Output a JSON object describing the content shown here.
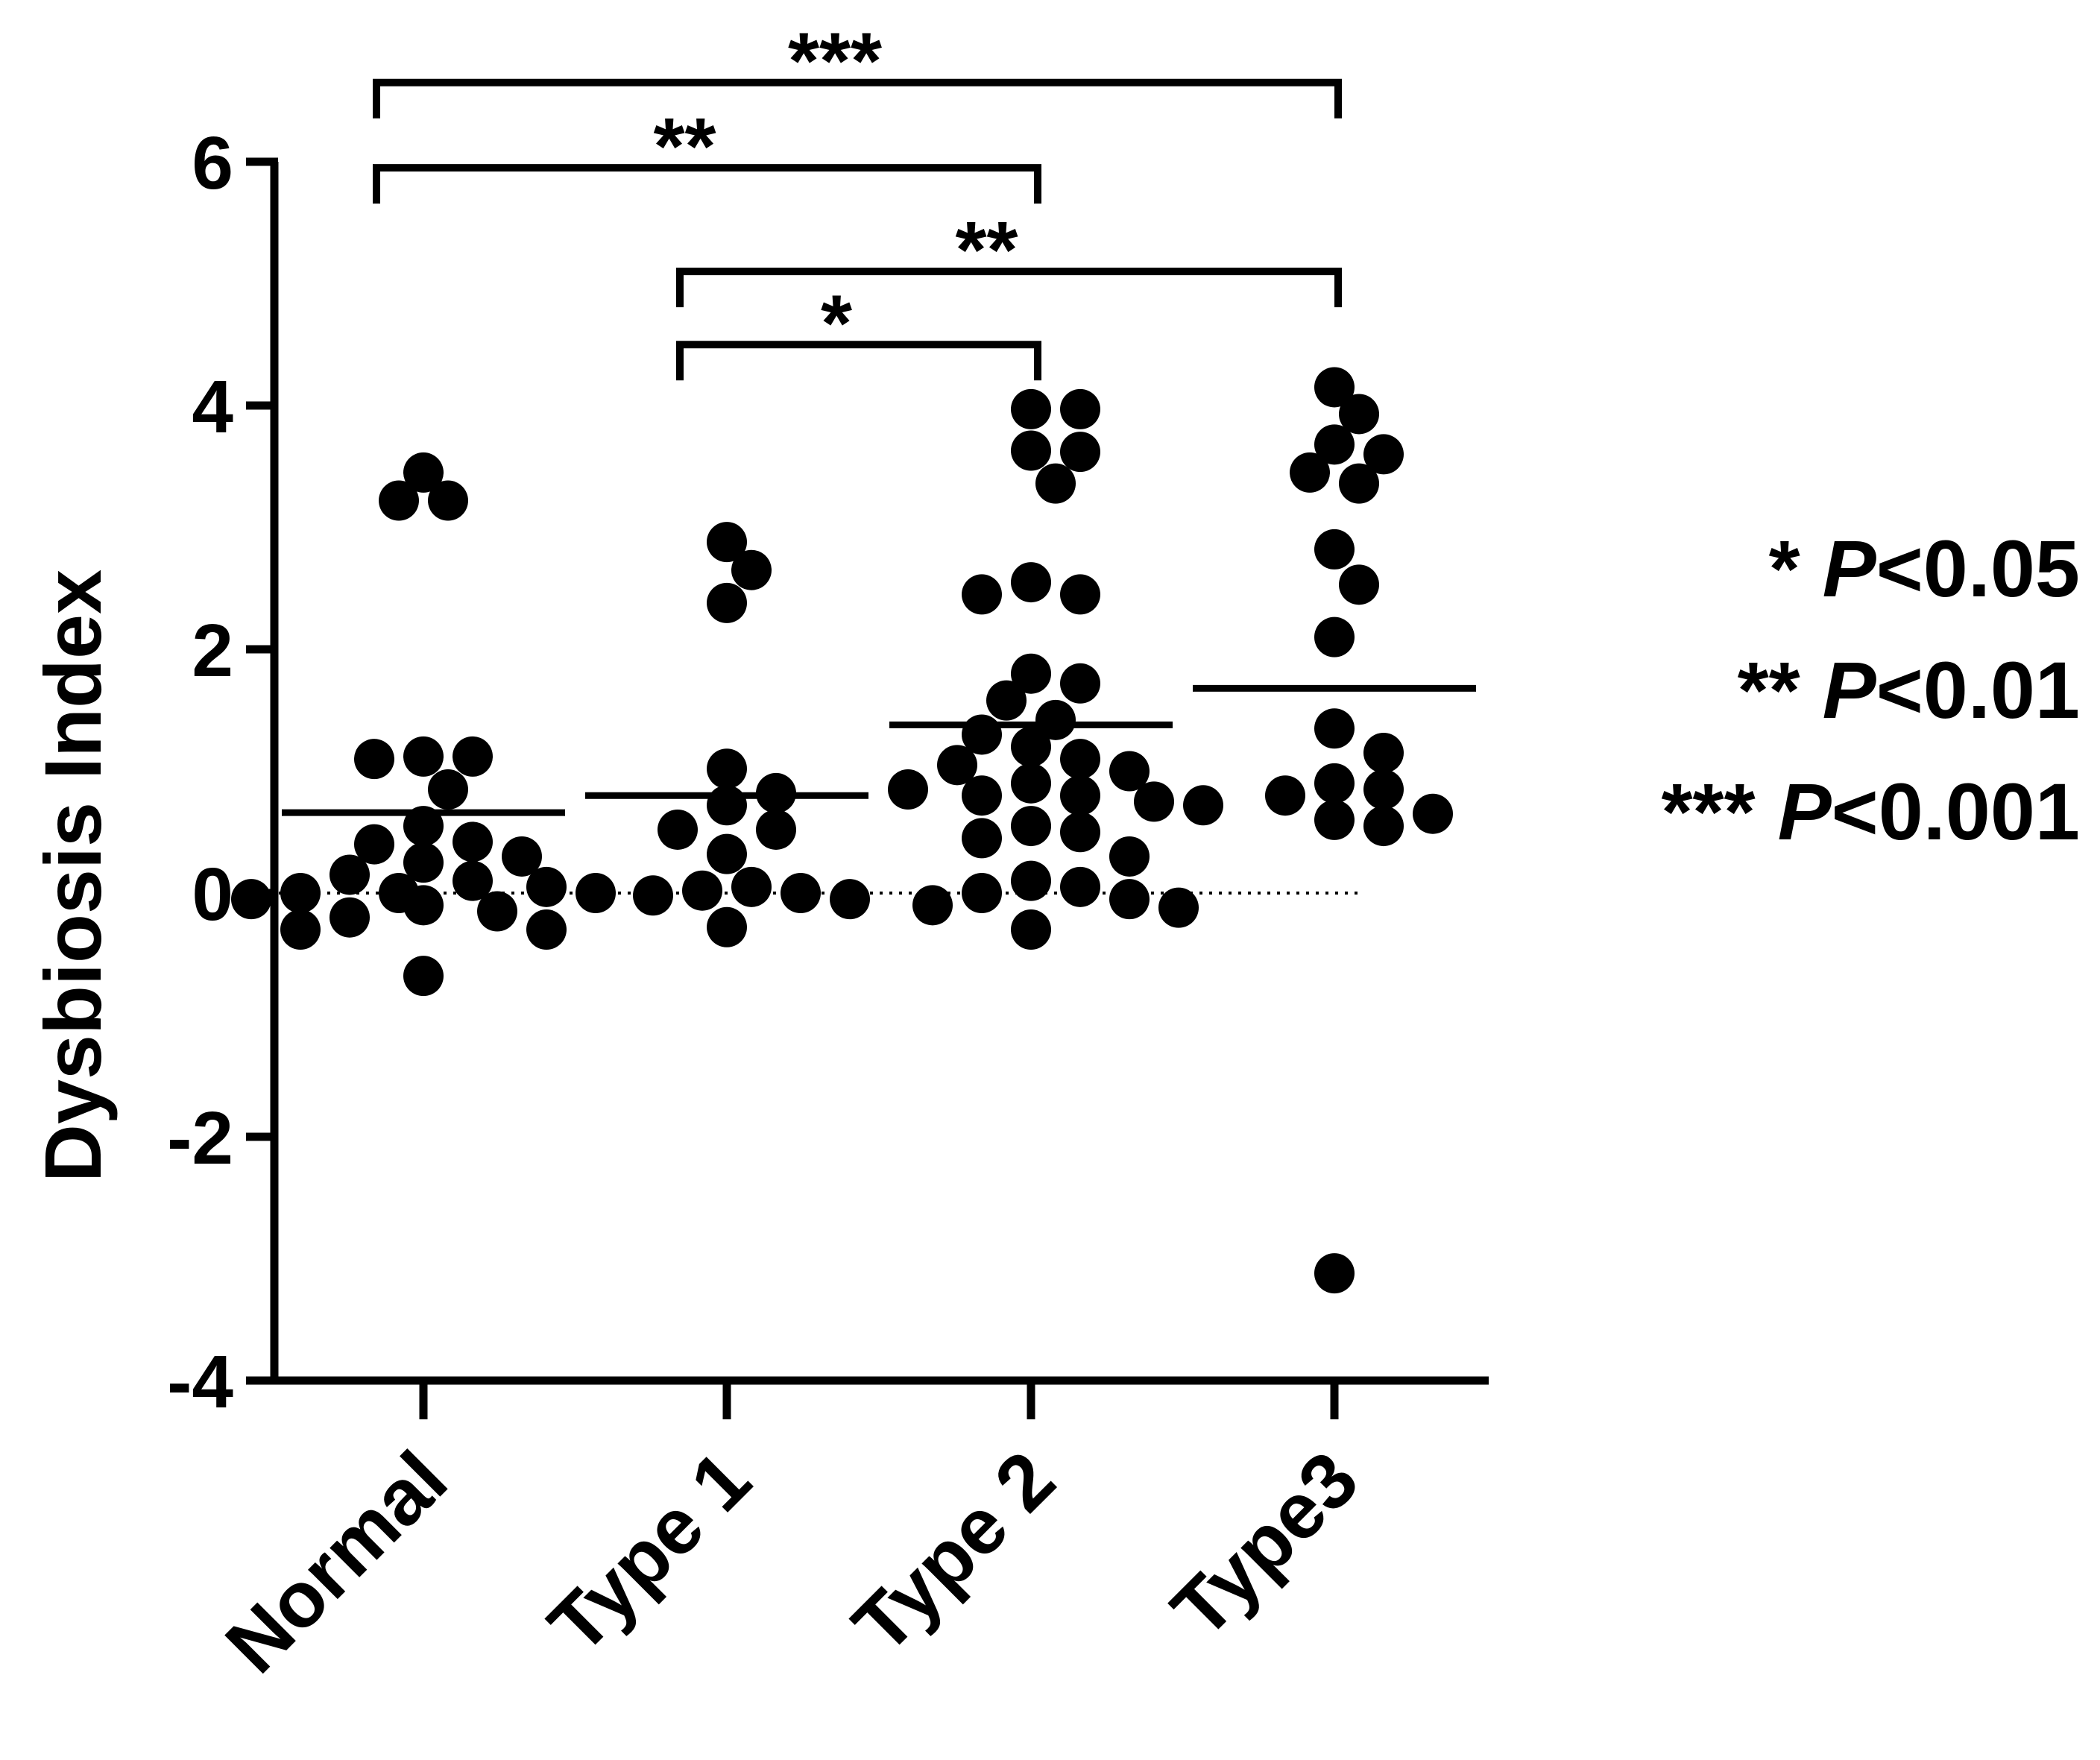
{
  "chart_data": {
    "type": "scatter",
    "ylabel": "Dysbiosis Index",
    "yticks": [
      6,
      4,
      2,
      0,
      -2,
      -4
    ],
    "ytick_labels": [
      "6",
      "4",
      "2",
      "0",
      "-2",
      "-4"
    ],
    "ylim": [
      -4,
      6
    ],
    "zero_reference_line": "dotted",
    "categories": [
      "Normal",
      "Type 1",
      "Type 2",
      "Type3"
    ],
    "series": [
      {
        "category": "Normal",
        "mean": 0.66,
        "points": [
          3.45,
          3.22,
          3.22,
          1.1,
          1.12,
          1.12,
          0.85,
          0.55,
          0.42,
          0.4,
          0.3,
          0.25,
          0.15,
          0.1,
          0.05,
          0.0,
          0.0,
          0.0,
          -0.05,
          -0.1,
          -0.15,
          -0.2,
          -0.3,
          -0.3,
          -0.68
        ]
      },
      {
        "category": "Type 1",
        "mean": 0.8,
        "points": [
          2.88,
          2.65,
          2.38,
          1.02,
          0.82,
          0.72,
          0.52,
          0.52,
          0.32,
          0.05,
          0.02,
          0.0,
          -0.02,
          -0.05,
          -0.28
        ]
      },
      {
        "category": "Type 2",
        "mean": 1.38,
        "points": [
          3.97,
          3.97,
          3.63,
          3.62,
          3.36,
          2.55,
          2.45,
          2.45,
          1.8,
          1.72,
          1.58,
          1.42,
          1.3,
          1.2,
          1.1,
          1.05,
          1.0,
          0.9,
          0.85,
          0.8,
          0.8,
          0.75,
          0.72,
          0.55,
          0.5,
          0.45,
          0.3,
          0.1,
          0.05,
          0.0,
          -0.05,
          -0.1,
          -0.12,
          -0.3
        ]
      },
      {
        "category": "Type3",
        "mean": 1.68,
        "points": [
          4.15,
          3.93,
          3.68,
          3.6,
          3.45,
          3.36,
          2.82,
          2.53,
          2.1,
          1.35,
          1.15,
          0.9,
          0.85,
          0.8,
          0.65,
          0.6,
          0.55,
          -3.12
        ]
      }
    ],
    "comparisons": [
      {
        "from": "Normal",
        "to": "Type3",
        "label": "***",
        "level": 6.65
      },
      {
        "from": "Normal",
        "to": "Type 2",
        "label": "**",
        "level": 5.95
      },
      {
        "from": "Type 1",
        "to": "Type3",
        "label": "**",
        "level": 5.1
      },
      {
        "from": "Type 1",
        "to": "Type 2",
        "label": "*",
        "level": 4.5
      }
    ],
    "legend": [
      {
        "stars": "*",
        "p_symbol": "P",
        "threshold": "<0.05"
      },
      {
        "stars": "**",
        "p_symbol": "P",
        "threshold": "<0.01"
      },
      {
        "stars": "***",
        "p_symbol": "P",
        "threshold": "<0.001"
      }
    ]
  }
}
